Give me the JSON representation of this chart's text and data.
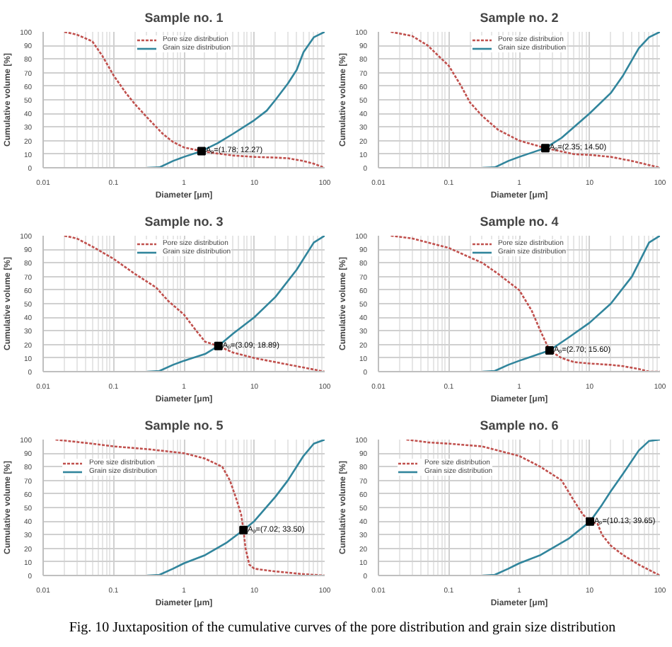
{
  "chart_data": [
    {
      "type": "line",
      "title": "Sample no. 1",
      "xlabel": "Diameter [μm]",
      "ylabel": "Cumulative volume [%]",
      "log": "x",
      "xlim": [
        0.01,
        100
      ],
      "xticks": [
        0.01,
        0.1,
        1,
        10,
        100
      ],
      "ylim": [
        0,
        100
      ],
      "yticks": [
        0,
        10,
        20,
        30,
        40,
        50,
        60,
        70,
        80,
        90,
        100
      ],
      "grid": true,
      "legend": "top",
      "series": [
        {
          "name": "Pore size distribution",
          "color": "#c0504d",
          "line_style": "dashed",
          "x": [
            0.02,
            0.03,
            0.05,
            0.07,
            0.1,
            0.15,
            0.2,
            0.3,
            0.5,
            0.7,
            1,
            1.78,
            3,
            5,
            10,
            20,
            30,
            50,
            70,
            100
          ],
          "values": [
            100,
            98,
            93,
            82,
            68,
            55,
            47,
            37,
            25,
            19,
            15,
            12.27,
            10.5,
            9,
            8,
            7.5,
            7,
            5,
            3,
            0
          ]
        },
        {
          "name": "Grain size distribution",
          "color": "#31859c",
          "line_style": "solid",
          "x": [
            0.3,
            0.45,
            0.7,
            1,
            1.78,
            3,
            5,
            10,
            15,
            20,
            30,
            40,
            50,
            70,
            100
          ],
          "values": [
            0,
            0.3,
            5,
            8,
            12.27,
            18,
            25,
            35,
            42,
            50,
            62,
            72,
            85,
            96,
            100
          ]
        },
        {
          "type": "scatter",
          "marker": "square",
          "color": "#000000",
          "x": [
            1.78
          ],
          "values": [
            12.27
          ]
        }
      ],
      "annotations": [
        {
          "text": "Aₚ=(1.78; 12.27)",
          "x": 1.78,
          "y": 12.27
        }
      ]
    },
    {
      "type": "line",
      "title": "Sample no. 2",
      "xlabel": "Diameter [μm]",
      "ylabel": "Cumulative volume [%]",
      "log": "x",
      "xlim": [
        0.01,
        100
      ],
      "xticks": [
        0.01,
        0.1,
        1,
        10,
        100
      ],
      "ylim": [
        0,
        100
      ],
      "yticks": [
        0,
        10,
        20,
        30,
        40,
        50,
        60,
        70,
        80,
        90,
        100
      ],
      "grid": true,
      "legend": "top",
      "series": [
        {
          "name": "Pore size distribution",
          "color": "#c0504d",
          "line_style": "dashed",
          "x": [
            0.015,
            0.03,
            0.05,
            0.1,
            0.15,
            0.2,
            0.3,
            0.5,
            1,
            2.35,
            4,
            6,
            10,
            20,
            40,
            70,
            100
          ],
          "values": [
            100,
            97,
            90,
            75,
            60,
            48,
            38,
            28,
            20,
            14.5,
            12,
            10,
            9.5,
            8,
            5,
            2,
            0
          ]
        },
        {
          "name": "Grain size distribution",
          "color": "#31859c",
          "line_style": "solid",
          "x": [
            0.3,
            0.45,
            0.7,
            1,
            2.35,
            4,
            6,
            10,
            20,
            30,
            50,
            70,
            100
          ],
          "values": [
            0,
            0.3,
            5,
            8,
            14.5,
            22,
            30,
            40,
            55,
            68,
            88,
            96,
            100
          ]
        },
        {
          "type": "scatter",
          "marker": "square",
          "color": "#000000",
          "x": [
            2.35
          ],
          "values": [
            14.5
          ]
        }
      ],
      "annotations": [
        {
          "text": "Aₚ=(2.35; 14.50)",
          "x": 2.35,
          "y": 14.5
        }
      ]
    },
    {
      "type": "line",
      "title": "Sample no. 3",
      "xlabel": "Diameter [μm]",
      "ylabel": "Cumulative volume [%]",
      "log": "x",
      "xlim": [
        0.01,
        100
      ],
      "xticks": [
        0.01,
        0.1,
        1,
        10,
        100
      ],
      "ylim": [
        0,
        100
      ],
      "yticks": [
        0,
        10,
        20,
        30,
        40,
        50,
        60,
        70,
        80,
        90,
        100
      ],
      "grid": true,
      "legend": "top",
      "series": [
        {
          "name": "Pore size distribution",
          "color": "#c0504d",
          "line_style": "dashed",
          "x": [
            0.02,
            0.03,
            0.05,
            0.1,
            0.2,
            0.4,
            0.6,
            1,
            1.5,
            2,
            3.09,
            5,
            10,
            20,
            40,
            100
          ],
          "values": [
            100,
            98,
            92,
            83,
            72,
            62,
            52,
            42,
            30,
            22,
            18.89,
            14,
            10,
            7,
            4,
            0
          ]
        },
        {
          "name": "Grain size distribution",
          "color": "#31859c",
          "line_style": "solid",
          "x": [
            0.3,
            0.45,
            0.7,
            1,
            2,
            3.09,
            5,
            10,
            20,
            40,
            70,
            100
          ],
          "values": [
            0,
            0.5,
            5,
            8,
            13,
            18.89,
            28,
            40,
            55,
            75,
            95,
            100
          ]
        },
        {
          "type": "scatter",
          "marker": "square",
          "color": "#000000",
          "x": [
            3.09
          ],
          "values": [
            18.89
          ]
        }
      ],
      "annotations": [
        {
          "text": "Aₚ=(3.09; 18.89)",
          "x": 3.09,
          "y": 18.89
        }
      ]
    },
    {
      "type": "line",
      "title": "Sample no. 4",
      "xlabel": "Diameter [μm]",
      "ylabel": "Cumulative volume [%]",
      "log": "x",
      "xlim": [
        0.01,
        100
      ],
      "xticks": [
        0.01,
        0.1,
        1,
        10,
        100
      ],
      "ylim": [
        0,
        100
      ],
      "yticks": [
        0,
        10,
        20,
        30,
        40,
        50,
        60,
        70,
        80,
        90,
        100
      ],
      "grid": true,
      "legend": "top",
      "series": [
        {
          "name": "Pore size distribution",
          "color": "#c0504d",
          "line_style": "dashed",
          "x": [
            0.015,
            0.03,
            0.1,
            0.3,
            0.5,
            1,
            1.5,
            2,
            2.7,
            4,
            6,
            10,
            20,
            30,
            50,
            70,
            100
          ],
          "values": [
            100,
            98,
            91,
            80,
            72,
            60,
            45,
            30,
            15.6,
            10,
            7,
            6,
            5,
            4,
            2,
            0,
            0
          ]
        },
        {
          "name": "Grain size distribution",
          "color": "#31859c",
          "line_style": "solid",
          "x": [
            0.3,
            0.45,
            0.7,
            1,
            2.7,
            5,
            10,
            20,
            40,
            70,
            100
          ],
          "values": [
            0,
            0.5,
            5,
            8,
            15.6,
            25,
            36,
            50,
            70,
            95,
            100
          ]
        },
        {
          "type": "scatter",
          "marker": "square",
          "color": "#000000",
          "x": [
            2.7
          ],
          "values": [
            15.6
          ]
        }
      ],
      "annotations": [
        {
          "text": "Aₚ=(2.70; 15.60)",
          "x": 2.7,
          "y": 15.6
        }
      ]
    },
    {
      "type": "line",
      "title": "Sample no. 5",
      "xlabel": "Diameter [μm]",
      "ylabel": "Cumulative volume [%]",
      "log": "x",
      "xlim": [
        0.01,
        100
      ],
      "xticks": [
        0.01,
        0.1,
        1,
        10,
        100
      ],
      "ylim": [
        0,
        100
      ],
      "yticks": [
        0,
        10,
        20,
        30,
        40,
        50,
        60,
        70,
        80,
        90,
        100
      ],
      "grid": true,
      "legend": "top left",
      "series": [
        {
          "name": "Pore size distribution",
          "color": "#c0504d",
          "line_style": "dashed",
          "x": [
            0.015,
            0.05,
            0.1,
            0.3,
            1,
            2,
            3.5,
            4.5,
            5.5,
            6.5,
            7.02,
            7.5,
            8.5,
            10,
            20,
            50,
            100
          ],
          "values": [
            100,
            97,
            95,
            93,
            90,
            86,
            80,
            70,
            57,
            45,
            33.5,
            20,
            8,
            5,
            3,
            1,
            0
          ]
        },
        {
          "name": "Grain size distribution",
          "color": "#31859c",
          "line_style": "solid",
          "x": [
            0.3,
            0.45,
            0.7,
            1,
            2,
            4,
            7.02,
            10,
            20,
            30,
            50,
            70,
            100
          ],
          "values": [
            0,
            0.5,
            5,
            9,
            15,
            24,
            33.5,
            40,
            58,
            70,
            88,
            97,
            100
          ]
        },
        {
          "type": "scatter",
          "marker": "square",
          "color": "#000000",
          "x": [
            7.02
          ],
          "values": [
            33.5
          ]
        }
      ],
      "annotations": [
        {
          "text": "Aₚ=(7.02; 33.50)",
          "x": 7.02,
          "y": 33.5
        }
      ]
    },
    {
      "type": "line",
      "title": "Sample no. 6",
      "xlabel": "Diameter [μm]",
      "ylabel": "Cumulative volume [%]",
      "log": "x",
      "xlim": [
        0.01,
        100
      ],
      "xticks": [
        0.01,
        0.1,
        1,
        10,
        100
      ],
      "ylim": [
        0,
        100
      ],
      "yticks": [
        0,
        10,
        20,
        30,
        40,
        50,
        60,
        70,
        80,
        90,
        100
      ],
      "grid": true,
      "legend": "top left",
      "series": [
        {
          "name": "Pore size distribution",
          "color": "#c0504d",
          "line_style": "dashed",
          "x": [
            0.025,
            0.05,
            0.1,
            0.3,
            1,
            2,
            4,
            6,
            8,
            10.13,
            13,
            15,
            20,
            30,
            50,
            100
          ],
          "values": [
            100,
            98,
            97,
            95,
            88,
            80,
            70,
            55,
            45,
            39.65,
            38,
            30,
            22,
            15,
            8,
            0
          ]
        },
        {
          "name": "Grain size distribution",
          "color": "#31859c",
          "line_style": "solid",
          "x": [
            0.3,
            0.45,
            0.7,
            1,
            2,
            5,
            10.13,
            15,
            20,
            30,
            50,
            70,
            100
          ],
          "values": [
            0,
            0.5,
            5,
            9,
            15,
            27,
            39.65,
            52,
            62,
            75,
            92,
            99,
            100
          ]
        },
        {
          "type": "scatter",
          "marker": "square",
          "color": "#000000",
          "x": [
            10.13
          ],
          "values": [
            39.65
          ]
        }
      ],
      "annotations": [
        {
          "text": "Aₚ=(10.13; 39.65)",
          "x": 10.13,
          "y": 39.65
        }
      ]
    },
    {
      "type": "other",
      "annotations": [
        "Fig. 10 Juxtaposition of the cumulative curves of the pore distribution and grain size distribution"
      ]
    }
  ]
}
